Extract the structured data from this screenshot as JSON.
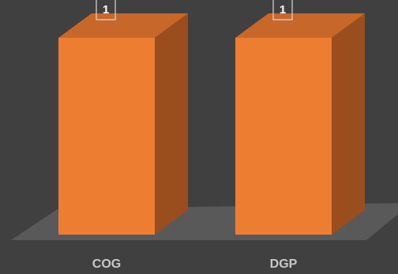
{
  "chart_data": {
    "type": "bar",
    "categories": [
      "COG",
      "DGP"
    ],
    "values": [
      1,
      1
    ],
    "ylim": [
      0,
      1
    ],
    "grid": false,
    "data_labels": [
      "1",
      "1"
    ],
    "style": {
      "background": "#404040",
      "floor": "#595959",
      "bar_front": "#ed7d31",
      "bar_top": "#c8672a",
      "bar_side": "#9a4d1d",
      "label_color": "#c8c8c8"
    }
  }
}
